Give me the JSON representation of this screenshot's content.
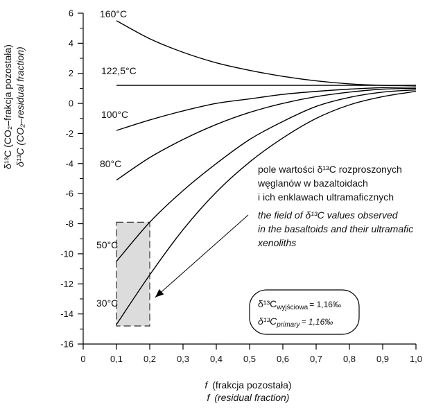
{
  "chart_data": {
    "type": "line",
    "xlabel_pl": "(frakcja pozostała)",
    "xlabel_en": "(residual fraction)",
    "xlabel_var": "f",
    "ylabel_pl": "δ¹³C (CO₂–frakcja pozostała)",
    "ylabel_en": "δ¹³C (CO₂–residual fraction)",
    "xlim": [
      0,
      1.0
    ],
    "ylim": [
      -16,
      6
    ],
    "x_ticks": [
      {
        "v": 0,
        "t": "0"
      },
      {
        "v": 0.1,
        "t": "0,1"
      },
      {
        "v": 0.2,
        "t": "0,2"
      },
      {
        "v": 0.3,
        "t": "0,3"
      },
      {
        "v": 0.4,
        "t": "0,4"
      },
      {
        "v": 0.5,
        "t": "0,5"
      },
      {
        "v": 0.6,
        "t": "0,6"
      },
      {
        "v": 0.7,
        "t": "0,7"
      },
      {
        "v": 0.8,
        "t": "0,8"
      },
      {
        "v": 0.9,
        "t": "0,9"
      },
      {
        "v": 1.0,
        "t": "1,0"
      }
    ],
    "y_ticks": [
      {
        "v": 6,
        "t": "6"
      },
      {
        "v": 4,
        "t": "4"
      },
      {
        "v": 2,
        "t": "2"
      },
      {
        "v": 0,
        "t": "0"
      },
      {
        "v": -2,
        "t": "-2"
      },
      {
        "v": -4,
        "t": "-4"
      },
      {
        "v": -6,
        "t": "-6"
      },
      {
        "v": -8,
        "t": "-8"
      },
      {
        "v": -10,
        "t": "-10"
      },
      {
        "v": -12,
        "t": "-12"
      },
      {
        "v": -14,
        "t": "-14"
      },
      {
        "v": -16,
        "t": "-16"
      }
    ],
    "series": [
      {
        "name": "160°C",
        "x": [
          0.1,
          0.2,
          0.3,
          0.4,
          0.5,
          0.6,
          0.7,
          0.8,
          0.9,
          1.0
        ],
        "y": [
          5.5,
          4.3,
          3.4,
          2.7,
          2.2,
          1.8,
          1.5,
          1.3,
          1.2,
          1.2
        ]
      },
      {
        "name": "122,5°C",
        "x": [
          0.1,
          1.0
        ],
        "y": [
          1.2,
          1.2
        ]
      },
      {
        "name": "100°C",
        "x": [
          0.1,
          0.2,
          0.3,
          0.4,
          0.5,
          0.6,
          0.7,
          0.8,
          0.9,
          1.0
        ],
        "y": [
          -1.8,
          -1.1,
          -0.5,
          0.0,
          0.3,
          0.6,
          0.8,
          0.95,
          1.05,
          1.1
        ]
      },
      {
        "name": "80°C",
        "x": [
          0.1,
          0.2,
          0.3,
          0.4,
          0.5,
          0.6,
          0.7,
          0.8,
          0.9,
          1.0
        ],
        "y": [
          -5.1,
          -3.6,
          -2.4,
          -1.4,
          -0.6,
          0.0,
          0.45,
          0.75,
          0.95,
          1.0
        ]
      },
      {
        "name": "50°C",
        "x": [
          0.1,
          0.2,
          0.3,
          0.4,
          0.5,
          0.6,
          0.7,
          0.8,
          0.9,
          1.0
        ],
        "y": [
          -10.5,
          -7.9,
          -5.8,
          -4.0,
          -2.4,
          -1.2,
          -0.2,
          0.4,
          0.75,
          0.9
        ]
      },
      {
        "name": "30°C",
        "x": [
          0.1,
          0.2,
          0.3,
          0.4,
          0.5,
          0.6,
          0.7,
          0.8,
          0.9,
          1.0
        ],
        "y": [
          -14.7,
          -11.4,
          -8.4,
          -5.9,
          -3.9,
          -2.3,
          -1.0,
          -0.1,
          0.45,
          0.8
        ]
      }
    ],
    "field": {
      "x_range": [
        0.1,
        0.2
      ],
      "y_range": [
        -14.8,
        -7.9
      ],
      "label_pl": [
        "pole wartości δ¹³C rozproszonych",
        "węglanów w bazaltoidach",
        "i ich enklawach ultramaficznych"
      ],
      "label_en": [
        "the field of δ¹³C values observed",
        "in the basaltoids and their ultramafic",
        "xenoliths"
      ]
    },
    "box": {
      "line_pl": "δ¹³C",
      "sub_pl": "wyjściowa",
      "value_pl": "= 1,16‰",
      "line_en": "δ¹³C",
      "sub_en": "primary",
      "value_en": "= 1,16‰"
    },
    "grid": false,
    "colors": {
      "field_fill": "#dcdcdc",
      "line": "#000000"
    }
  }
}
